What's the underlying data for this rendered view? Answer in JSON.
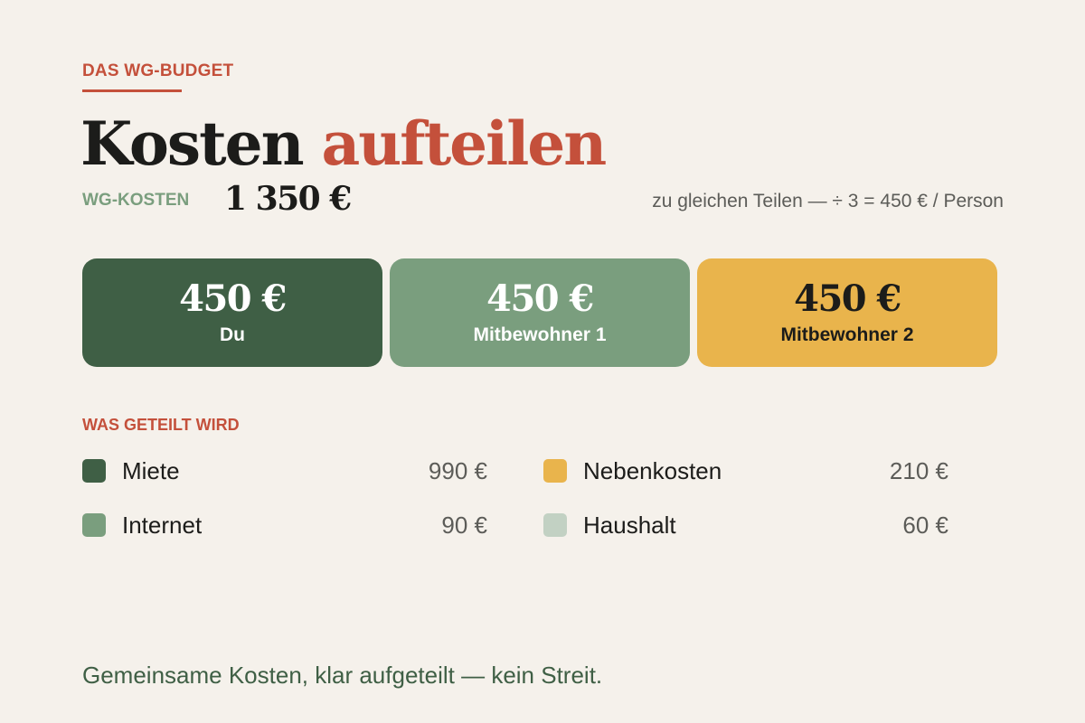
{
  "header": {
    "eyebrow": "DAS WG-BUDGET",
    "title_main": "Kosten",
    "title_accent": "aufteilen",
    "total_label": "WG-KOSTEN",
    "total_value": "1 350 €",
    "split_note": "zu gleichen Teilen — ÷ 3 = 450 € / Person"
  },
  "cards": [
    {
      "amount": "450 €",
      "name": "Du",
      "color": "#3f5f45"
    },
    {
      "amount": "450 €",
      "name": "Mitbewohner 1",
      "color": "#7a9e7e"
    },
    {
      "amount": "450 €",
      "name": "Mitbewohner 2",
      "color": "#e9b44c"
    }
  ],
  "breakdown": {
    "label": "WAS GETEILT WIRD",
    "items": [
      {
        "label": "Miete",
        "value": "990 €",
        "color": "#3f5f45"
      },
      {
        "label": "Nebenkosten",
        "value": "210 €",
        "color": "#e9b44c"
      },
      {
        "label": "Internet",
        "value": "90 €",
        "color": "#7a9e7e"
      },
      {
        "label": "Haushalt",
        "value": "60 €",
        "color": "#c2d1c3"
      }
    ]
  },
  "footer": {
    "text": "Gemeinsame Kosten, klar aufgeteilt — kein Streit."
  }
}
